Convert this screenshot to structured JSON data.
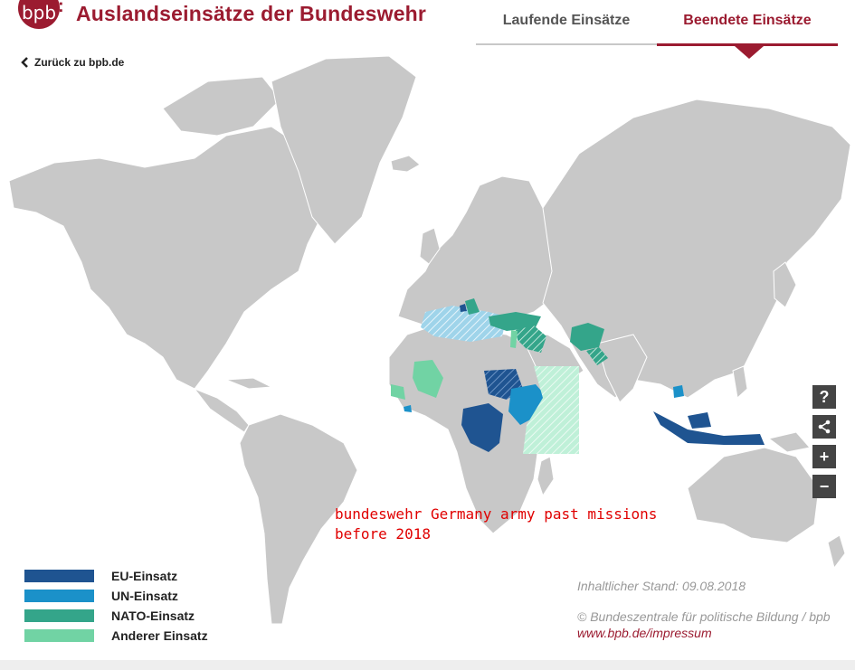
{
  "header": {
    "logo_text": "bpb",
    "title": "Auslandseinsätze der Bundeswehr",
    "tabs": [
      {
        "label": "Laufende Einsätze",
        "active": false
      },
      {
        "label": "Beendete Einsätze",
        "active": true
      }
    ]
  },
  "back_link": {
    "label": "Zurück zu bpb.de"
  },
  "controls": {
    "help": "?",
    "share": "share-icon",
    "zoom_in": "+",
    "zoom_out": "−"
  },
  "annotation": {
    "line1": "bundeswehr Germany army past missions",
    "line2": "before 2018"
  },
  "legend": [
    {
      "label": "EU-Einsatz",
      "color": "#1f5491"
    },
    {
      "label": "UN-Einsatz",
      "color": "#1b91c9"
    },
    {
      "label": "NATO-Einsatz",
      "color": "#34a58a"
    },
    {
      "label": "Anderer Einsatz",
      "color": "#71d3a4"
    }
  ],
  "credits": {
    "stand": "Inhaltlicher Stand: 09.08.2018",
    "copyright": "© Bundeszentrale für politische Bildung / bpb",
    "impressum": "www.bpb.de/impressum"
  },
  "colors": {
    "brand": "#9b1b30",
    "land": "#c8c8c8",
    "sea": "#ffffff"
  }
}
